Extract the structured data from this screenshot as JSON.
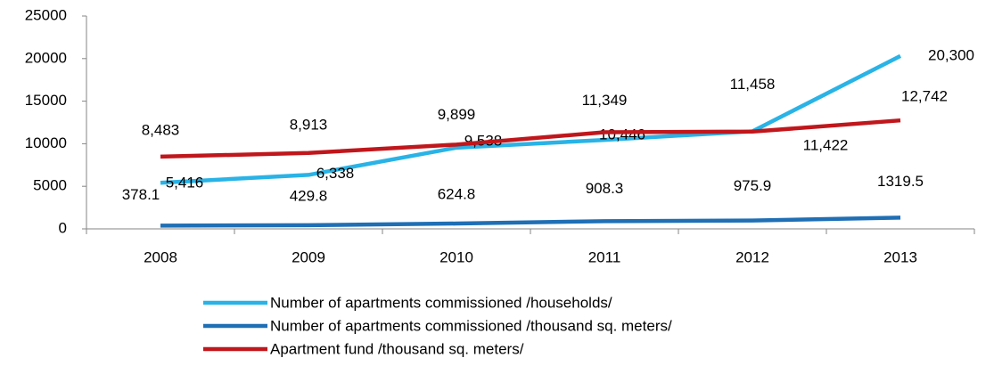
{
  "chart_data": {
    "type": "line",
    "categories": [
      "2008",
      "2009",
      "2010",
      "2011",
      "2012",
      "2013"
    ],
    "series": [
      {
        "name": "Number of apartments commissioned /households/",
        "color": "#29b3e6",
        "values": [
          5416,
          6338,
          9538,
          10446,
          11458,
          20300
        ],
        "value_labels": [
          "5,416",
          "6,338",
          "9,538",
          "10,446",
          "11,458",
          "20,300"
        ]
      },
      {
        "name": "Number of apartments commissioned /thousand sq. meters/",
        "color": "#1f6fb5",
        "values": [
          378.1,
          429.8,
          624.8,
          908.3,
          975.9,
          1319.5
        ]
      },
      {
        "name": "Apartment fund /thousand sq. meters/",
        "color": "#c0171c",
        "values": [
          8483,
          8913,
          9899,
          11349,
          11422,
          12742
        ],
        "value_labels": [
          "8,483",
          "8,913",
          "9,899",
          "11,349",
          "11,422",
          "12,742"
        ]
      }
    ],
    "ylim": [
      0,
      25000
    ],
    "yticks": [
      0,
      5000,
      10000,
      15000,
      20000,
      25000
    ],
    "legend": "bottom"
  }
}
